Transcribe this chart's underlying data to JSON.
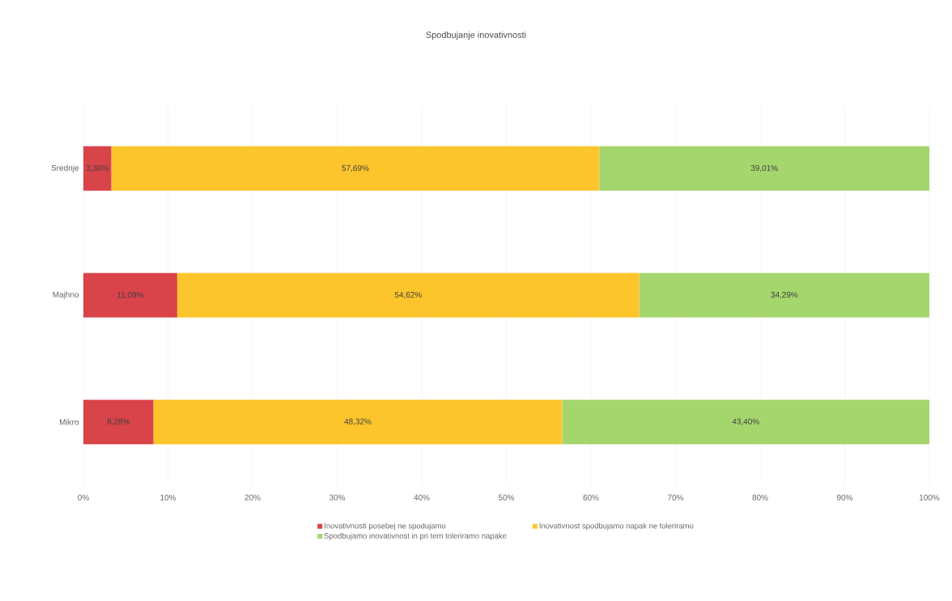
{
  "chart_data": {
    "type": "bar",
    "orientation": "horizontal",
    "stacked": true,
    "title": "Spodbujanje inovativnosti",
    "categories": [
      "Srednje",
      "Majhno",
      "Mikro"
    ],
    "series": [
      {
        "name": "Inovativnosti posebej ne spodujamo",
        "color": "#d9434a",
        "values": [
          3.3,
          11.09,
          8.28
        ],
        "value_labels": [
          "3,30%",
          "11,09%",
          "8,28%"
        ]
      },
      {
        "name": "Inovativnost spodbujamo napak ne toleriramo",
        "color": "#fcc52c",
        "values": [
          57.69,
          54.62,
          48.32
        ],
        "value_labels": [
          "57,69%",
          "54,62%",
          "48,32%"
        ]
      },
      {
        "name": "Spodbujamo inovativnost in pri tem toleriramo napake",
        "color": "#a5d66e",
        "values": [
          39.01,
          34.29,
          43.4
        ],
        "value_labels": [
          "39,01%",
          "34,29%",
          "43,40%"
        ]
      }
    ],
    "xlim": [
      0,
      100
    ],
    "xticks": [
      {
        "value": 0,
        "label": "0%"
      },
      {
        "value": 10,
        "label": "10%"
      },
      {
        "value": 20,
        "label": "20%"
      },
      {
        "value": 30,
        "label": "30%"
      },
      {
        "value": 40,
        "label": "40%"
      },
      {
        "value": 50,
        "label": "50%"
      },
      {
        "value": 60,
        "label": "60%"
      },
      {
        "value": 70,
        "label": "70%"
      },
      {
        "value": 80,
        "label": "80%"
      },
      {
        "value": 90,
        "label": "90%"
      },
      {
        "value": 100,
        "label": "100%"
      }
    ],
    "grid": "x",
    "legend": "bottom"
  }
}
